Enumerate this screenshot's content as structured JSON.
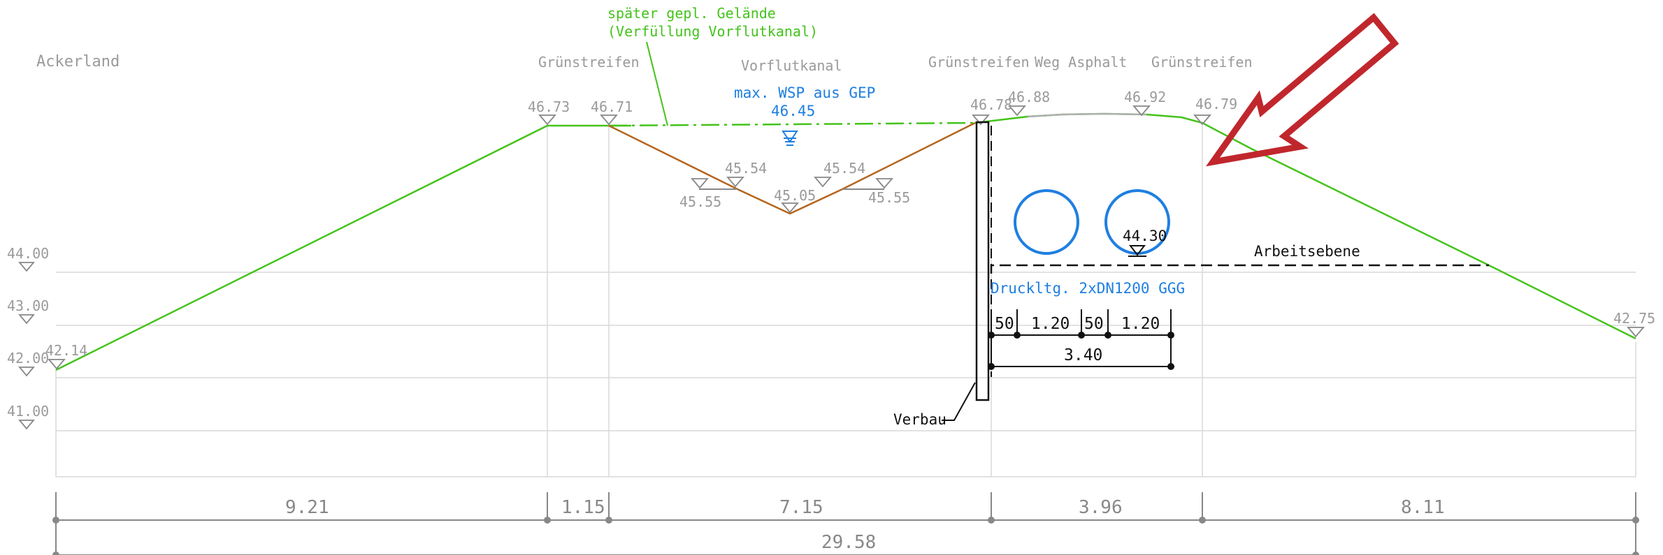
{
  "labels": {
    "ackerland": "Ackerland",
    "gruenstreifen_left": "Grünstreifen",
    "vorflutkanal": "Vorflutkanal",
    "gruenstreifen_mid": "Grünstreifen",
    "weg_asphalt": "Weg Asphalt",
    "gruenstreifen_right": "Grünstreifen",
    "spaeter_line1": "später gepl. Gelände",
    "spaeter_line2": "(Verfüllung Vorflutkanal)",
    "wsp_label": "max. WSP aus GEP",
    "wsp_value": "46.45",
    "arbeitsebene": "Arbeitsebene",
    "druckltg": "Druckltg. 2xDN1200 GGG",
    "verbau": "Verbau"
  },
  "elevations": {
    "e4673": "46.73",
    "e4671": "46.71",
    "e4678": "46.78",
    "e4688": "46.88",
    "e4692": "46.92",
    "e4679": "46.79",
    "e4554a": "45.54",
    "e4554b": "45.54",
    "e4555a": "45.55",
    "e4555b": "45.55",
    "e4505": "45.05",
    "e4214": "42.14",
    "e4275": "42.75",
    "e4430": "44.30"
  },
  "axis_levels": [
    "44.00",
    "43.00",
    "42.00",
    "41.00"
  ],
  "pipe_dims": {
    "d50a": "50",
    "d120a": "1.20",
    "d50b": "50",
    "d120b": "1.20",
    "d340": "3.40"
  },
  "bottom_dims": {
    "d921": "9.21",
    "d115": "1.15",
    "d715": "7.15",
    "d396": "3.96",
    "d811": "8.11",
    "total": "29.58"
  },
  "colors": {
    "terrain": "#44c31b",
    "canal": "#b5651d",
    "water": "#1e7fe0",
    "arrow": "#c0272d",
    "grid": "#d9d9d9",
    "dim": "#888888"
  }
}
